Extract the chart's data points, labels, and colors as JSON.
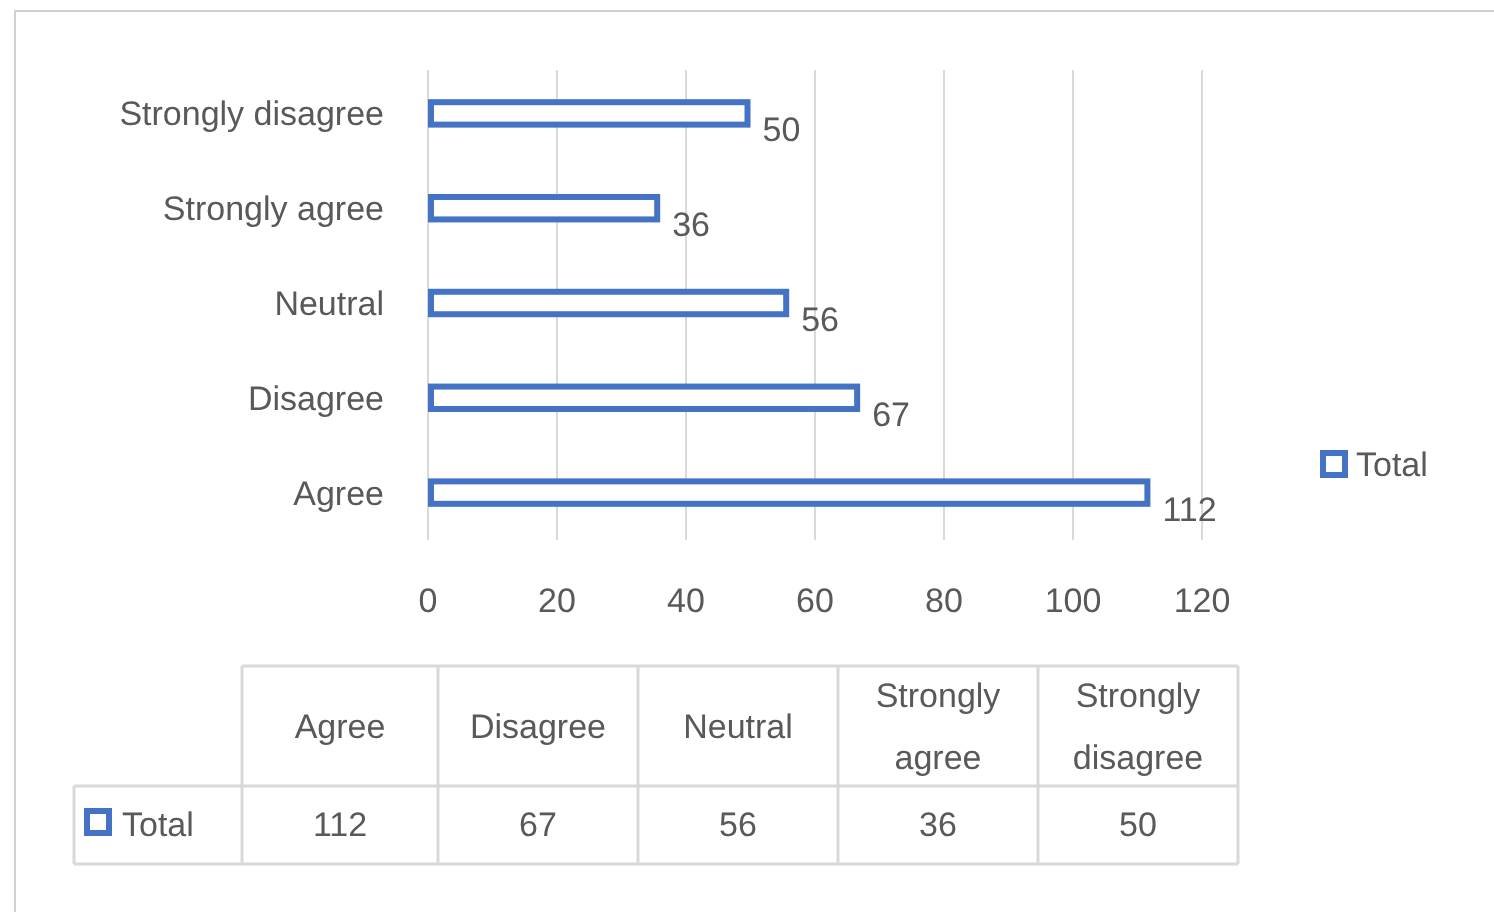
{
  "chart_data": [
    {
      "type": "bar",
      "orientation": "horizontal",
      "categories": [
        "Strongly disagree",
        "Strongly agree",
        "Neutral",
        "Disagree",
        "Agree"
      ],
      "series": [
        {
          "name": "Total",
          "color": "#4472c4",
          "values": [
            50,
            36,
            56,
            67,
            112
          ]
        }
      ],
      "xlim": [
        0,
        120
      ],
      "xticks": [
        0,
        20,
        40,
        60,
        80,
        100,
        120
      ],
      "grid": "x",
      "legend": "right",
      "data_labels": true
    },
    {
      "type": "other",
      "categories": [
        "Agree",
        "Disagree",
        "Neutral",
        "Strongly agree",
        "Strongly disagree"
      ],
      "series": [
        {
          "name": "Total",
          "color": "#4472c4",
          "values": [
            112,
            67,
            56,
            36,
            50
          ]
        }
      ],
      "data_labels": true
    }
  ]
}
